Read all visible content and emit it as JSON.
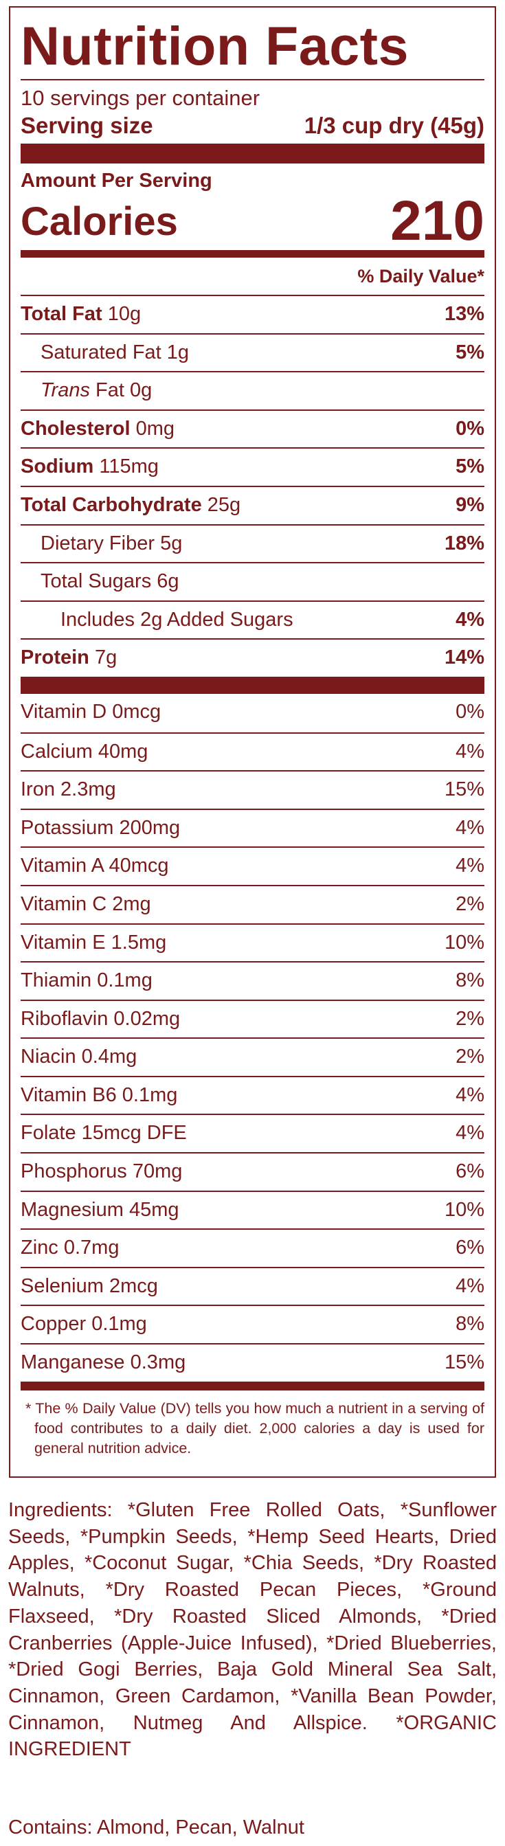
{
  "label": {
    "title": "Nutrition Facts",
    "servings": "10 servings per container",
    "serving_size_label": "Serving size",
    "serving_size": "1/3 cup dry (45g)",
    "amount_per_serving": "Amount Per Serving",
    "calories_label": "Calories",
    "calories": "210",
    "dv_header": "% Daily Value*",
    "rows": [
      {
        "name": "Total Fat",
        "amount": "10g",
        "dv": "13%",
        "bold": true,
        "indent": 0
      },
      {
        "name": "Saturated Fat",
        "amount": "1g",
        "dv": "5%",
        "bold": false,
        "indent": 1
      },
      {
        "italic_name": "Trans",
        "name": "Fat",
        "amount": "0g",
        "bold": false,
        "indent": 1
      },
      {
        "name": "Cholesterol",
        "amount": "0mg",
        "dv": "0%",
        "bold": true,
        "indent": 0
      },
      {
        "name": "Sodium",
        "amount": "115mg",
        "dv": "5%",
        "bold": true,
        "indent": 0
      },
      {
        "name": "Total Carbohydrate",
        "amount": "25g",
        "dv": "9%",
        "bold": true,
        "indent": 0
      },
      {
        "name": "Dietary Fiber",
        "amount": "5g",
        "dv": "18%",
        "bold": false,
        "indent": 1
      },
      {
        "name": "Total Sugars",
        "amount": "6g",
        "bold": false,
        "indent": 1
      },
      {
        "name": "Includes 2g Added Sugars",
        "dv": "4%",
        "bold": false,
        "indent": 2
      },
      {
        "name": "Protein",
        "amount": "7g",
        "dv": "14%",
        "bold": true,
        "indent": 0
      }
    ],
    "micronutrients": [
      {
        "name": "Vitamin D",
        "amount": "0mcg",
        "dv": "0%"
      },
      {
        "name": "Calcium",
        "amount": "40mg",
        "dv": "4%"
      },
      {
        "name": "Iron",
        "amount": "2.3mg",
        "dv": "15%"
      },
      {
        "name": "Potassium",
        "amount": "200mg",
        "dv": "4%"
      },
      {
        "name": "Vitamin A",
        "amount": "40mcg",
        "dv": "4%"
      },
      {
        "name": "Vitamin C",
        "amount": "2mg",
        "dv": "2%"
      },
      {
        "name": "Vitamin E",
        "amount": "1.5mg",
        "dv": "10%"
      },
      {
        "name": "Thiamin",
        "amount": "0.1mg",
        "dv": "8%"
      },
      {
        "name": "Riboflavin",
        "amount": "0.02mg",
        "dv": "2%"
      },
      {
        "name": "Niacin",
        "amount": "0.4mg",
        "dv": "2%"
      },
      {
        "name": "Vitamin B6",
        "amount": "0.1mg",
        "dv": "4%"
      },
      {
        "name": "Folate",
        "amount": "15mcg DFE",
        "dv": "4%"
      },
      {
        "name": "Phosphorus",
        "amount": "70mg",
        "dv": "6%"
      },
      {
        "name": "Magnesium",
        "amount": "45mg",
        "dv": "10%"
      },
      {
        "name": "Zinc",
        "amount": "0.7mg",
        "dv": "6%"
      },
      {
        "name": "Selenium",
        "amount": "2mcg",
        "dv": "4%"
      },
      {
        "name": "Copper",
        "amount": "0.1mg",
        "dv": "8%"
      },
      {
        "name": "Manganese",
        "amount": "0.3mg",
        "dv": "15%"
      }
    ],
    "footnote": "* The % Daily Value (DV) tells you how much a nutrient in a serving of food contributes to a daily diet. 2,000 calories a day is used for general nutrition advice."
  },
  "ingredients": "Ingredients: *Gluten Free Rolled Oats, *Sunflower Seeds, *Pumpkin Seeds, *Hemp Seed Hearts, Dried Apples, *Coconut Sugar, *Chia Seeds, *Dry Roasted Walnuts, *Dry Roasted Pecan Pieces, *Ground Flaxseed, *Dry Roasted Sliced Almonds, *Dried Cranberries (Apple-Juice Infused), *Dried Blueberries, *Dried Gogi Berries, Baja Gold Mineral Sea Salt, Cinnamon, Green Cardamon, *Vanilla Bean Powder, Cinnamon, Nutmeg And Allspice. *ORGANIC INGREDIENT",
  "contains": "Contains: Almond, Pecan, Walnut"
}
